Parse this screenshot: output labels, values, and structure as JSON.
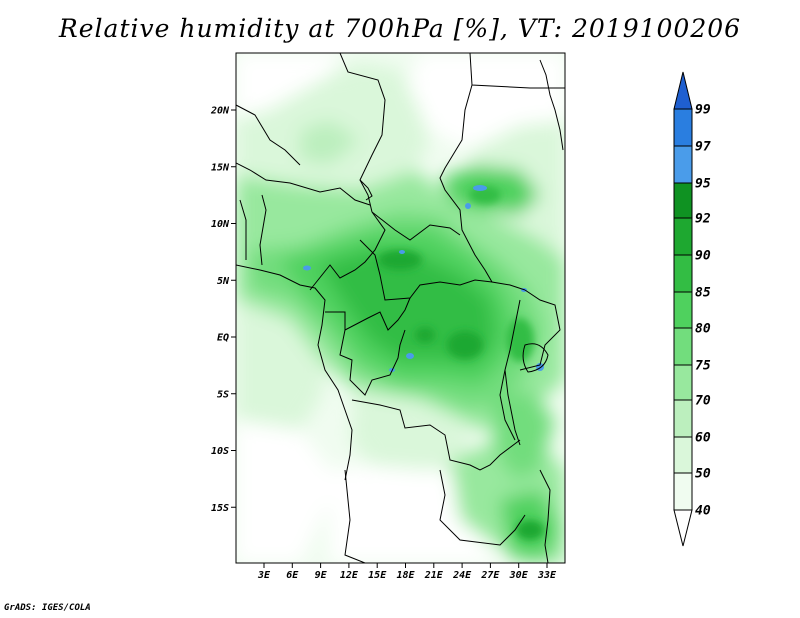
{
  "title": "Relative humidity at 700hPa [%], VT: 2019100206",
  "credit": "GrADS: IGES/COLA",
  "map": {
    "lat_labels": [
      "20N",
      "15N",
      "10N",
      "5N",
      "EQ",
      "5S",
      "10S",
      "15S"
    ],
    "lon_labels": [
      "3E",
      "6E",
      "9E",
      "12E",
      "15E",
      "18E",
      "21E",
      "24E",
      "27E",
      "30E",
      "33E"
    ],
    "lat_range": [
      -20,
      25
    ],
    "lon_range": [
      0,
      35
    ]
  },
  "colorbar": {
    "levels": [
      "99",
      "97",
      "95",
      "92",
      "90",
      "85",
      "80",
      "75",
      "70",
      "60",
      "50",
      "40"
    ],
    "colors": {
      "c99": "#1f5fd0",
      "c97": "#2a7ee0",
      "c95": "#4a9cea",
      "c92": "#0f9222",
      "c90": "#1ea830",
      "c85": "#33bd44",
      "c80": "#4fd15e",
      "c75": "#72dd7d",
      "c70": "#98e89e",
      "c60": "#bcefbe",
      "c50": "#daf7da",
      "c40": "#f0fcf0",
      "below": "#ffffff"
    }
  }
}
